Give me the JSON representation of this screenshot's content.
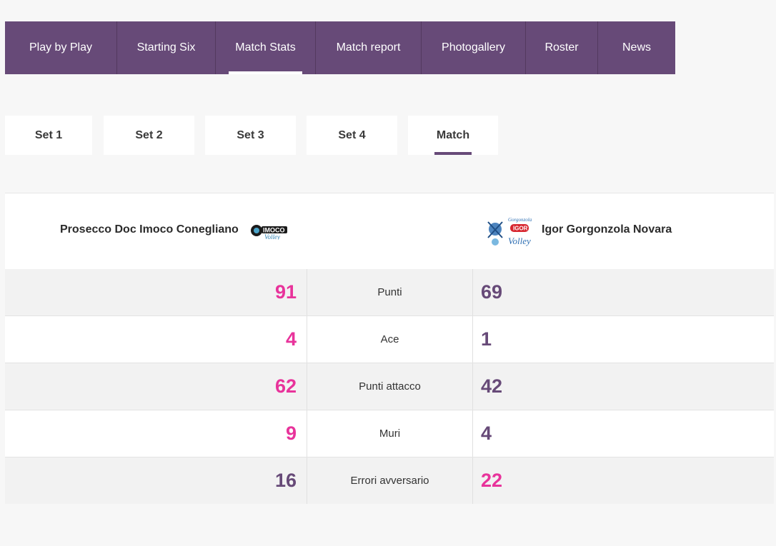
{
  "nav": {
    "tabs": [
      {
        "label": "Play by Play"
      },
      {
        "label": "Starting Six"
      },
      {
        "label": "Match Stats",
        "active": true
      },
      {
        "label": "Match report"
      },
      {
        "label": "Photogallery"
      },
      {
        "label": "Roster"
      },
      {
        "label": "News"
      }
    ]
  },
  "set_tabs": [
    {
      "label": "Set 1"
    },
    {
      "label": "Set 2"
    },
    {
      "label": "Set 3"
    },
    {
      "label": "Set 4"
    },
    {
      "label": "Match",
      "active": true
    }
  ],
  "teams": {
    "home": {
      "name": "Prosecco Doc Imoco Conegliano",
      "logo": "imoco-volley-logo"
    },
    "away": {
      "name": "Igor Gorgonzola Novara",
      "logo": "igor-gorgonzola-volley-logo"
    }
  },
  "stats": [
    {
      "label": "Punti",
      "home": "91",
      "away": "69"
    },
    {
      "label": "Ace",
      "home": "4",
      "away": "1"
    },
    {
      "label": "Punti attacco",
      "home": "62",
      "away": "42"
    },
    {
      "label": "Muri",
      "home": "9",
      "away": "4"
    },
    {
      "label": "Errori avversario",
      "home": "16",
      "away": "22"
    }
  ],
  "colors": {
    "brand": "#674a78",
    "highlight": "#e8339b"
  }
}
